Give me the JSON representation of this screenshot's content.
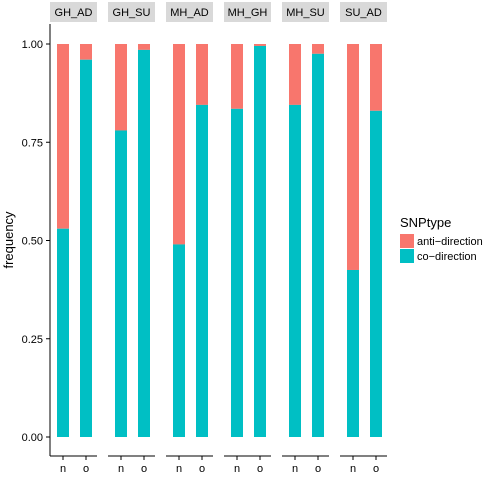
{
  "chart_data": {
    "type": "bar",
    "stacked": true,
    "ylabel": "frequency",
    "xlabel": "",
    "ylim": [
      0,
      1
    ],
    "yticks": [
      "0.00",
      "0.25",
      "0.50",
      "0.75",
      "1.00"
    ],
    "ytick_values": [
      0,
      0.25,
      0.5,
      0.75,
      1.0
    ],
    "categories": [
      "n",
      "o"
    ],
    "panels": [
      {
        "label": "GH_AD",
        "co_direction": [
          0.53,
          0.96
        ]
      },
      {
        "label": "GH_SU",
        "co_direction": [
          0.78,
          0.985
        ]
      },
      {
        "label": "MH_AD",
        "co_direction": [
          0.49,
          0.845
        ]
      },
      {
        "label": "MH_GH",
        "co_direction": [
          0.835,
          0.995
        ]
      },
      {
        "label": "MH_SU",
        "co_direction": [
          0.845,
          0.975
        ]
      },
      {
        "label": "SU_AD",
        "co_direction": [
          0.425,
          0.83
        ]
      }
    ],
    "series": [
      {
        "name": "anti−direction",
        "color": "#F8766D"
      },
      {
        "name": "co−direction",
        "color": "#00BFC4"
      }
    ],
    "legend": {
      "title": "SNPtype",
      "position": "right"
    },
    "grid": false
  }
}
